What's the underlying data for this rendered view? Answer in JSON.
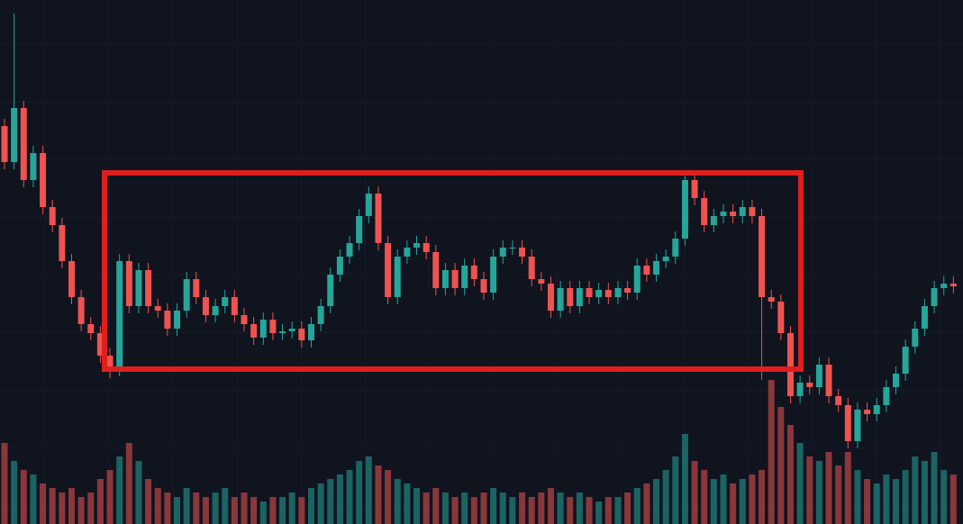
{
  "chart_data": {
    "type": "candlestick",
    "open": [
      442,
      402,
      462,
      382,
      412,
      352,
      332,
      292,
      252,
      222,
      212,
      187,
      172,
      292,
      242,
      282,
      242,
      237,
      217,
      237,
      272,
      252,
      232,
      242,
      252,
      232,
      222,
      207,
      227,
      212,
      214,
      217,
      204,
      222,
      242,
      277,
      297,
      312,
      342,
      367,
      312,
      252,
      297,
      307,
      312,
      302,
      262,
      282,
      262,
      287,
      272,
      257,
      297,
      307,
      307,
      297,
      272,
      267,
      237,
      262,
      242,
      262,
      252,
      260,
      252,
      262,
      257,
      287,
      277,
      292,
      297,
      317,
      382,
      362,
      332,
      342,
      347,
      342,
      352,
      342,
      252,
      247,
      212,
      142,
      157,
      152,
      177,
      142,
      132,
      92,
      127,
      122,
      132,
      152,
      167,
      197,
      217,
      242,
      262,
      267
    ],
    "high": [
      450,
      567,
      470,
      420,
      420,
      360,
      340,
      300,
      260,
      230,
      220,
      195,
      300,
      300,
      290,
      290,
      250,
      245,
      245,
      280,
      280,
      260,
      250,
      260,
      260,
      240,
      230,
      235,
      235,
      222,
      225,
      225,
      230,
      250,
      285,
      305,
      320,
      350,
      375,
      375,
      320,
      305,
      315,
      320,
      320,
      310,
      290,
      290,
      295,
      295,
      280,
      305,
      315,
      315,
      315,
      305,
      280,
      275,
      270,
      270,
      270,
      270,
      268,
      268,
      270,
      270,
      295,
      295,
      300,
      305,
      325,
      390,
      390,
      370,
      350,
      355,
      355,
      360,
      360,
      350,
      260,
      255,
      220,
      165,
      165,
      185,
      185,
      150,
      140,
      135,
      135,
      140,
      160,
      175,
      205,
      225,
      250,
      270,
      275,
      275
    ],
    "low": [
      394,
      394,
      374,
      374,
      344,
      324,
      284,
      244,
      214,
      204,
      179,
      162,
      164,
      234,
      234,
      234,
      229,
      209,
      209,
      229,
      244,
      224,
      224,
      234,
      224,
      214,
      199,
      199,
      204,
      204,
      206,
      196,
      196,
      214,
      234,
      269,
      289,
      304,
      334,
      304,
      244,
      244,
      289,
      299,
      294,
      254,
      254,
      254,
      254,
      264,
      249,
      249,
      289,
      299,
      289,
      264,
      259,
      229,
      229,
      234,
      234,
      244,
      244,
      244,
      244,
      249,
      249,
      269,
      269,
      284,
      289,
      309,
      354,
      324,
      324,
      334,
      334,
      334,
      334,
      160,
      239,
      204,
      134,
      134,
      144,
      144,
      134,
      124,
      84,
      84,
      114,
      114,
      124,
      144,
      159,
      189,
      209,
      234,
      254,
      256
    ],
    "close": [
      402,
      462,
      382,
      412,
      352,
      332,
      292,
      252,
      222,
      212,
      187,
      172,
      292,
      242,
      282,
      242,
      237,
      217,
      237,
      272,
      252,
      232,
      242,
      252,
      232,
      222,
      207,
      227,
      212,
      214,
      217,
      204,
      222,
      242,
      277,
      297,
      312,
      342,
      367,
      312,
      252,
      297,
      307,
      312,
      302,
      262,
      282,
      262,
      287,
      272,
      257,
      297,
      307,
      307,
      297,
      272,
      267,
      237,
      262,
      242,
      262,
      252,
      260,
      252,
      262,
      257,
      287,
      277,
      292,
      297,
      317,
      382,
      362,
      332,
      342,
      347,
      342,
      352,
      342,
      252,
      247,
      212,
      142,
      157,
      152,
      177,
      142,
      132,
      92,
      127,
      122,
      132,
      152,
      167,
      197,
      217,
      242,
      262,
      267,
      264
    ],
    "volume": [
      90,
      70,
      60,
      55,
      45,
      40,
      35,
      40,
      30,
      35,
      50,
      60,
      75,
      90,
      70,
      50,
      40,
      35,
      30,
      40,
      35,
      30,
      35,
      40,
      30,
      35,
      30,
      25,
      30,
      30,
      35,
      30,
      40,
      45,
      50,
      55,
      60,
      70,
      75,
      65,
      60,
      50,
      45,
      40,
      35,
      40,
      35,
      30,
      35,
      30,
      35,
      40,
      35,
      30,
      35,
      30,
      35,
      40,
      35,
      30,
      35,
      30,
      25,
      30,
      30,
      35,
      40,
      45,
      50,
      60,
      75,
      100,
      70,
      60,
      50,
      55,
      45,
      50,
      55,
      60,
      160,
      130,
      110,
      90,
      75,
      70,
      80,
      65,
      80,
      60,
      50,
      45,
      55,
      50,
      60,
      75,
      70,
      80,
      60,
      55
    ],
    "ylim": [
      0,
      582
    ],
    "y2lim": [
      0,
      582
    ],
    "up_color": "#26a69a",
    "down_color": "#ef5350"
  }
}
